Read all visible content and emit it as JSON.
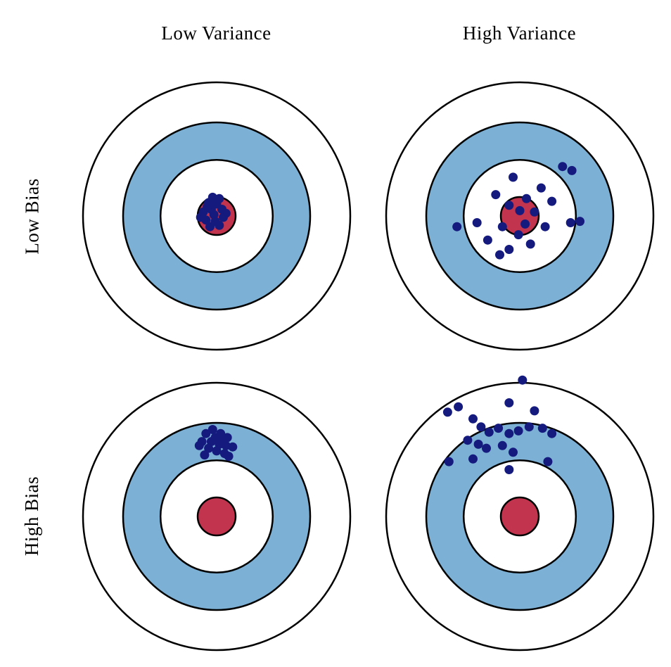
{
  "columns": [
    {
      "label": "Low Variance"
    },
    {
      "label": "High Variance"
    }
  ],
  "rows": [
    {
      "label": "Low Bias"
    },
    {
      "label": "High Bias"
    }
  ],
  "colors": {
    "background": "#ffffff",
    "ring_stroke": "#000000",
    "ring_fill_white": "#ffffff",
    "ring_fill_blue": "#7db0d5",
    "bullseye_red": "#c2334d",
    "dot_navy": "#151b7e",
    "text": "#000000"
  },
  "target": {
    "outer_radius": 190,
    "stroke_width": 2.5,
    "dot_radius": 6.5,
    "rings": [
      {
        "r": 1.0,
        "fill": "white",
        "name": "outer-ring"
      },
      {
        "r": 0.7,
        "fill": "blue",
        "name": "blue-ring"
      },
      {
        "r": 0.42,
        "fill": "white",
        "name": "inner-white-ring"
      },
      {
        "r": 0.142,
        "fill": "red",
        "name": "bullseye"
      }
    ]
  },
  "panels": [
    {
      "id": "low-bias-low-variance",
      "row": "Low Bias",
      "column": "Low Variance",
      "dots": [
        [
          -0.06,
          -0.1
        ],
        [
          0.0,
          -0.09
        ],
        [
          -0.04,
          -0.05
        ],
        [
          0.04,
          -0.05
        ],
        [
          -0.1,
          -0.03
        ],
        [
          -0.02,
          -0.01
        ],
        [
          0.05,
          0.01
        ],
        [
          -0.08,
          0.03
        ],
        [
          -0.01,
          0.04
        ],
        [
          -0.05,
          0.08
        ],
        [
          0.02,
          -0.13
        ],
        [
          -0.12,
          0.01
        ],
        [
          0.07,
          -0.02
        ],
        [
          -0.03,
          -0.14
        ],
        [
          0.02,
          0.07
        ],
        [
          -0.07,
          -0.07
        ]
      ]
    },
    {
      "id": "low-bias-high-variance",
      "row": "Low Bias",
      "column": "High Variance",
      "dots": [
        [
          0.32,
          -0.37
        ],
        [
          0.39,
          -0.34
        ],
        [
          -0.05,
          -0.29
        ],
        [
          0.16,
          -0.21
        ],
        [
          -0.18,
          -0.16
        ],
        [
          0.05,
          -0.13
        ],
        [
          0.24,
          -0.11
        ],
        [
          -0.08,
          -0.08
        ],
        [
          0.0,
          -0.04
        ],
        [
          0.11,
          -0.03
        ],
        [
          -0.47,
          0.08
        ],
        [
          -0.32,
          0.05
        ],
        [
          -0.13,
          0.08
        ],
        [
          0.04,
          0.06
        ],
        [
          0.19,
          0.08
        ],
        [
          0.38,
          0.05
        ],
        [
          0.45,
          0.04
        ],
        [
          -0.24,
          0.18
        ],
        [
          -0.08,
          0.25
        ],
        [
          0.08,
          0.21
        ],
        [
          -0.01,
          0.14
        ],
        [
          -0.15,
          0.29
        ]
      ]
    },
    {
      "id": "high-bias-low-variance",
      "row": "High Bias",
      "column": "Low Variance",
      "dots": [
        [
          -0.08,
          -0.62
        ],
        [
          -0.03,
          -0.65
        ],
        [
          0.03,
          -0.62
        ],
        [
          0.08,
          -0.59
        ],
        [
          -0.11,
          -0.56
        ],
        [
          -0.04,
          -0.56
        ],
        [
          0.02,
          -0.54
        ],
        [
          0.07,
          -0.53
        ],
        [
          -0.06,
          -0.51
        ],
        [
          0.0,
          -0.49
        ],
        [
          0.06,
          -0.47
        ],
        [
          0.12,
          -0.52
        ],
        [
          -0.13,
          -0.53
        ],
        [
          0.04,
          -0.58
        ],
        [
          0.09,
          -0.45
        ],
        [
          -0.09,
          -0.46
        ],
        [
          -0.01,
          -0.59
        ]
      ]
    },
    {
      "id": "high-bias-high-variance",
      "row": "High Bias",
      "column": "High Variance",
      "dots": [
        [
          0.02,
          -1.02
        ],
        [
          -0.54,
          -0.78
        ],
        [
          -0.46,
          -0.82
        ],
        [
          -0.35,
          -0.73
        ],
        [
          -0.08,
          -0.85
        ],
        [
          0.11,
          -0.79
        ],
        [
          -0.29,
          -0.67
        ],
        [
          -0.23,
          -0.63
        ],
        [
          -0.16,
          -0.66
        ],
        [
          -0.08,
          -0.62
        ],
        [
          -0.01,
          -0.64
        ],
        [
          0.07,
          -0.67
        ],
        [
          0.17,
          -0.66
        ],
        [
          0.24,
          -0.62
        ],
        [
          -0.39,
          -0.57
        ],
        [
          -0.31,
          -0.54
        ],
        [
          -0.25,
          -0.51
        ],
        [
          -0.13,
          -0.53
        ],
        [
          -0.05,
          -0.48
        ],
        [
          -0.53,
          -0.41
        ],
        [
          -0.35,
          -0.43
        ],
        [
          -0.08,
          -0.35
        ],
        [
          0.21,
          -0.41
        ]
      ]
    }
  ]
}
